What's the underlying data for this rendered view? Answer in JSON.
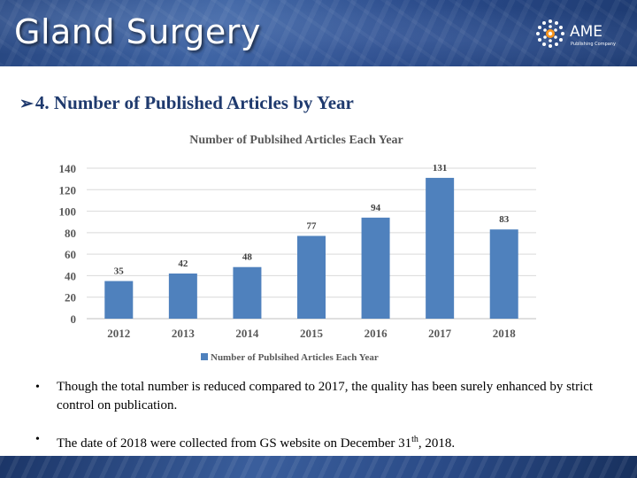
{
  "header": {
    "journal_title": "Gland Surgery",
    "logo_text": "AME",
    "logo_subtext": "Publishing Company"
  },
  "section": {
    "arrow": "➢",
    "heading": "4. Number of Published Articles by Year"
  },
  "chart_data": {
    "type": "bar",
    "title": "Number of Publsihed Articles Each Year",
    "categories": [
      "2012",
      "2013",
      "2014",
      "2015",
      "2016",
      "2017",
      "2018"
    ],
    "series": [
      {
        "name": "Number of Publsihed Articles Each Year",
        "values": [
          35,
          42,
          48,
          77,
          94,
          131,
          83
        ]
      }
    ],
    "ylim": [
      0,
      140
    ],
    "yticks": [
      0,
      20,
      40,
      60,
      80,
      100,
      120,
      140
    ],
    "data_labels": true,
    "grid": true,
    "legend": "bottom",
    "bar_color": "#4f81bd"
  },
  "notes": [
    {
      "bullet": "•",
      "text": "Though the total number is reduced compared to 2017,  the quality has been surely enhanced by strict control on publication."
    },
    {
      "bullet": "•",
      "text_before": "The date of 2018 were collected from GS website on December 31",
      "superscript": "th",
      "text_after": ", 2018."
    }
  ]
}
